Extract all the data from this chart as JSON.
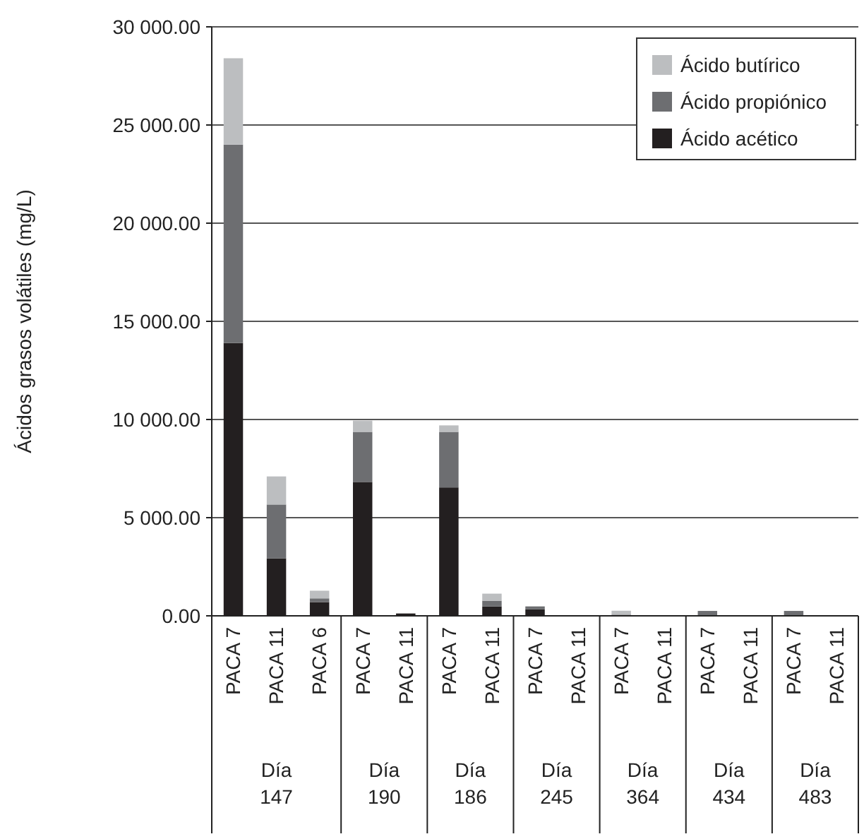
{
  "chart_data": {
    "type": "bar",
    "stacked": true,
    "ylabel": "Ácidos grasos volátiles (mg/L)",
    "categories": [
      "PACA 7",
      "PACA 11",
      "PACA 6",
      "PACA 7",
      "PACA 11",
      "PACA 7",
      "PACA 11",
      "PACA 7",
      "PACA 11",
      "PACA 7",
      "PACA 11",
      "PACA 7",
      "PACA 11",
      "PACA 7",
      "PACA 11"
    ],
    "series": [
      {
        "name": "Ácido acético",
        "color": "#231f20",
        "values": [
          13900,
          2930,
          700,
          6820,
          120,
          6540,
          480,
          330,
          0,
          0,
          0,
          0,
          0,
          0,
          0
        ]
      },
      {
        "name": "Ácido propiónico",
        "color": "#6d6e71",
        "values": [
          10100,
          2740,
          190,
          2550,
          0,
          2830,
          290,
          150,
          0,
          60,
          0,
          250,
          0,
          250,
          0
        ]
      },
      {
        "name": "Ácido butírico",
        "color": "#bcbec0",
        "values": [
          4400,
          1430,
          390,
          570,
          0,
          330,
          360,
          0,
          0,
          200,
          0,
          0,
          0,
          0,
          0
        ]
      }
    ],
    "annotations": [
      "Día 147",
      "Día 190",
      "Día 186",
      "Día 245",
      "Día 364",
      "Día 434",
      "Día 483"
    ],
    "ylim": [
      0,
      30000
    ],
    "yticks": [
      {
        "value": 0,
        "label": "0.00"
      },
      {
        "value": 5000,
        "label": "5 000.00"
      },
      {
        "value": 10000,
        "label": "10 000.00"
      },
      {
        "value": 15000,
        "label": "15 000.00"
      },
      {
        "value": 20000,
        "label": "20 000.00"
      },
      {
        "value": 25000,
        "label": "25 000.00"
      },
      {
        "value": 30000,
        "label": "30 000.00"
      }
    ],
    "grid": "y",
    "legend": "top right"
  }
}
